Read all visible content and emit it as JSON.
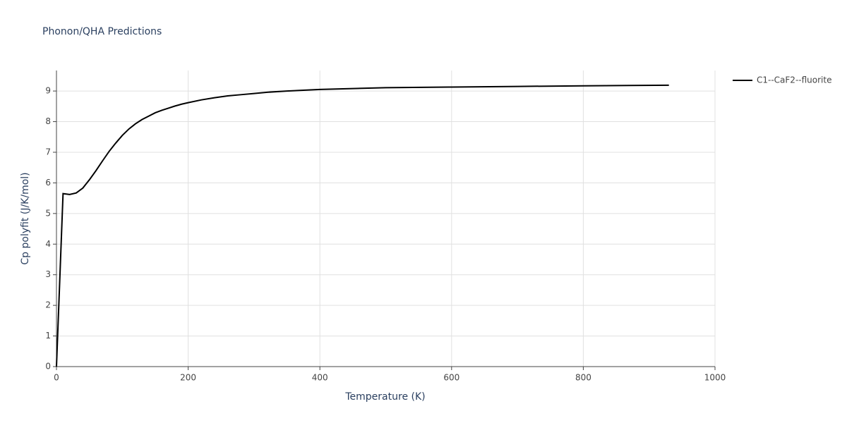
{
  "chart_data": {
    "type": "line",
    "title": "Phonon/QHA Predictions",
    "x_label": "Temperature (K)",
    "y_label": "Cp polyfit (J/K/mol)",
    "x": [
      0,
      10,
      20,
      30,
      40,
      50,
      60,
      70,
      80,
      90,
      100,
      110,
      120,
      130,
      140,
      150,
      160,
      170,
      180,
      190,
      200,
      220,
      240,
      260,
      280,
      300,
      320,
      350,
      400,
      450,
      500,
      600,
      700,
      800,
      930
    ],
    "series": [
      {
        "name": "C1--CaF2--fluorite",
        "color": "#000000",
        "values": [
          0,
          5.65,
          5.62,
          5.67,
          5.83,
          6.1,
          6.4,
          6.72,
          7.03,
          7.3,
          7.55,
          7.76,
          7.93,
          8.07,
          8.18,
          8.29,
          8.37,
          8.44,
          8.51,
          8.57,
          8.62,
          8.71,
          8.78,
          8.84,
          8.88,
          8.92,
          8.96,
          9.0,
          9.05,
          9.08,
          9.11,
          9.13,
          9.15,
          9.17,
          9.19
        ]
      }
    ],
    "xlim": [
      0,
      1000
    ],
    "xticks": [
      0,
      200,
      400,
      600,
      800,
      1000
    ],
    "ylim": [
      0,
      9.67
    ],
    "yticks": [
      0,
      1,
      2,
      3,
      4,
      5,
      6,
      7,
      8,
      9
    ],
    "grid": true,
    "legend": "right"
  }
}
